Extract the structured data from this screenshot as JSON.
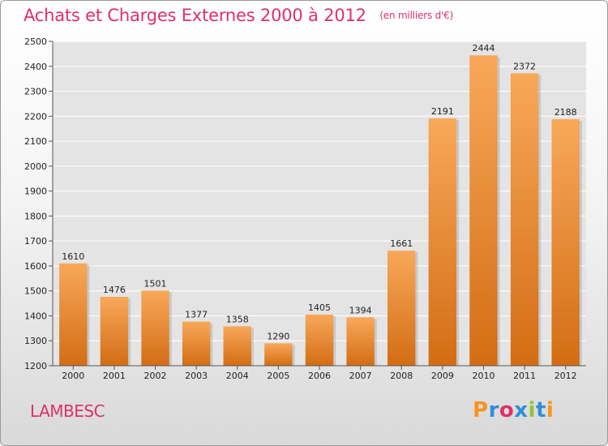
{
  "header": {
    "title": "Achats et Charges Externes 2000 à 2012",
    "unit": "(en milliers d'€)"
  },
  "footer": {
    "place": "LAMBESC",
    "logo": [
      "P",
      "r",
      "o",
      "x",
      "i",
      "t",
      "i"
    ],
    "logo_colors": [
      "#f7941d",
      "#2f8fd8",
      "#e0306a",
      "#2f8fd8",
      "#8cc63f",
      "#2f8fd8",
      "#f7941d"
    ]
  },
  "chart_data": {
    "type": "bar",
    "title": "Achats et Charges Externes 2000 à 2012",
    "unit": "(en milliers d'€)",
    "categories": [
      "2000",
      "2001",
      "2002",
      "2003",
      "2004",
      "2005",
      "2006",
      "2007",
      "2008",
      "2009",
      "2010",
      "2011",
      "2012"
    ],
    "values": [
      1610,
      1476,
      1501,
      1377,
      1358,
      1290,
      1405,
      1394,
      1661,
      2191,
      2444,
      2372,
      2188
    ],
    "ylim": [
      1200,
      2500
    ],
    "yticks": [
      1200,
      1300,
      1400,
      1500,
      1600,
      1700,
      1800,
      1900,
      2000,
      2100,
      2200,
      2300,
      2400,
      2500
    ],
    "grid": true,
    "bar_color_top": "#f8a85a",
    "bar_color_bottom": "#d36d14"
  }
}
